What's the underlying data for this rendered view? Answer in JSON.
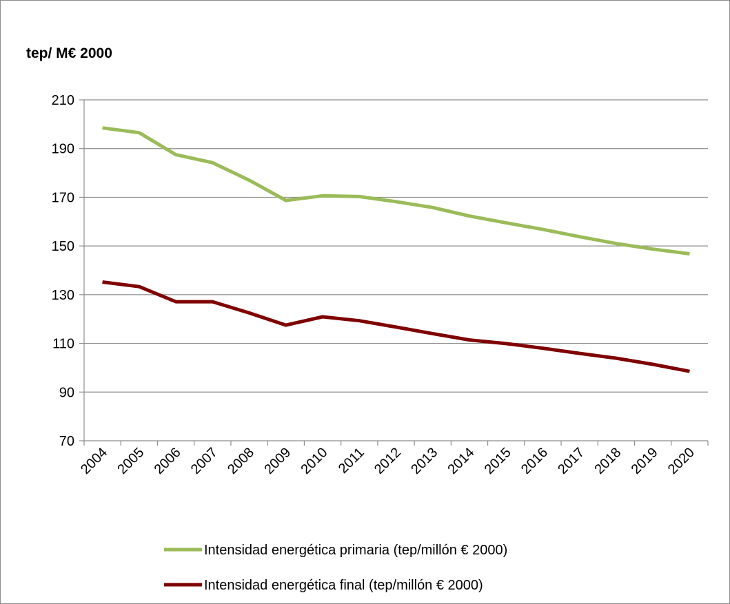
{
  "chart_data": {
    "type": "line",
    "ylabel": "tep/ M€ 2000",
    "ylim": [
      70,
      210
    ],
    "yticks": [
      70,
      90,
      110,
      130,
      150,
      170,
      190,
      210
    ],
    "grid": true,
    "legend_position": "bottom",
    "categories": [
      "2004",
      "2005",
      "2006",
      "2007",
      "2008",
      "2009",
      "2010",
      "2011",
      "2012",
      "2013",
      "2014",
      "2015",
      "2016",
      "2017",
      "2018",
      "2019",
      "2020"
    ],
    "series": [
      {
        "name": "Intensidad energética primaria (tep/millón € 2000)",
        "color": "#9bbb59",
        "values": [
          198.5,
          196.5,
          187.5,
          184.2,
          177.0,
          168.7,
          170.6,
          170.3,
          168.2,
          165.8,
          162.3,
          159.5,
          156.8,
          153.8,
          151.0,
          148.7,
          146.8
        ]
      },
      {
        "name": "Intensidad energética final (tep/millón € 2000)",
        "color": "#7f0000",
        "values": [
          135.2,
          133.3,
          127.1,
          127.1,
          122.5,
          117.5,
          120.9,
          119.3,
          116.7,
          114.0,
          111.4,
          109.9,
          108.0,
          105.9,
          103.9,
          101.4,
          98.5
        ]
      }
    ]
  }
}
